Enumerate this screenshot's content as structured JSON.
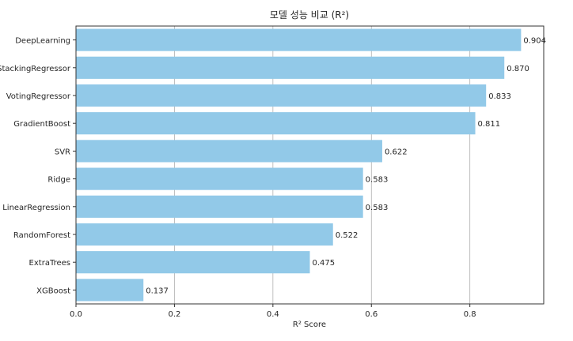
{
  "chart_data": {
    "type": "bar",
    "orientation": "horizontal",
    "title": "모델 성능 비교 (R²)",
    "xlabel": "R² Score",
    "ylabel": "",
    "xlim": [
      0,
      0.95
    ],
    "xticks": [
      0.0,
      0.2,
      0.4,
      0.6,
      0.8
    ],
    "xtick_labels": [
      "0.0",
      "0.2",
      "0.4",
      "0.6",
      "0.8"
    ],
    "grid": "vertical",
    "bar_color": "#92c9e8",
    "categories": [
      "DeepLearning",
      "StackingRegressor",
      "VotingRegressor",
      "GradientBoost",
      "SVR",
      "Ridge",
      "LinearRegression",
      "RandomForest",
      "ExtraTrees",
      "XGBoost"
    ],
    "values": [
      0.904,
      0.87,
      0.833,
      0.811,
      0.622,
      0.583,
      0.583,
      0.522,
      0.475,
      0.137
    ],
    "value_labels": [
      "0.904",
      "0.870",
      "0.833",
      "0.811",
      "0.622",
      "0.583",
      "0.583",
      "0.522",
      "0.475",
      "0.137"
    ]
  }
}
